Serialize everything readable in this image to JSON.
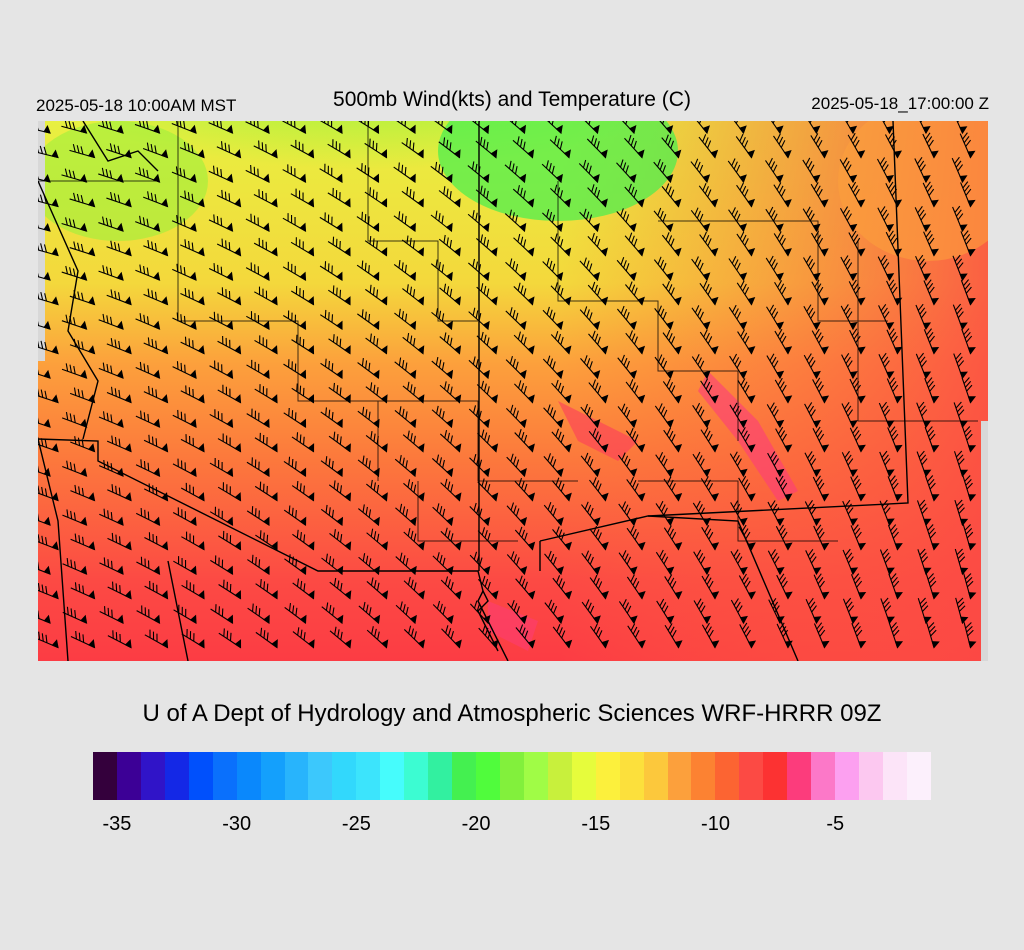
{
  "header": {
    "local_time": "2025-05-18 10:00AM MST",
    "title": "500mb Wind(kts) and Temperature (C)",
    "valid_time": "2025-05-18_17:00:00 Z"
  },
  "credit": "U of A Dept of Hydrology and Atmospheric Sciences WRF-HRRR 09Z",
  "map": {
    "field": "500mb temperature (C) with wind barbs (kts)",
    "colors": {
      "coldest_region": "#44f050",
      "cool_region": "#e8f040",
      "mid_region": "#fc9a3c",
      "warm_region": "#fc4a44",
      "warmest_streaks": "#fc3c7c",
      "background": "#d8d8d8",
      "barb": "#000000"
    }
  },
  "colorbar": {
    "colors": [
      "#34003c",
      "#3c0096",
      "#3014c8",
      "#1428e6",
      "#0050fc",
      "#0a70fc",
      "#0a88fc",
      "#14a0fc",
      "#28b4fc",
      "#3cc8fc",
      "#32d8fc",
      "#3ce4fc",
      "#46fcfc",
      "#3cfcd2",
      "#32f0a0",
      "#44f050",
      "#50fc3c",
      "#82f03c",
      "#a0fc46",
      "#c8f03c",
      "#e6fc3c",
      "#fcf03c",
      "#fce03c",
      "#fcc83c",
      "#fca03c",
      "#fc8232",
      "#fc6432",
      "#fc4a44",
      "#fc3232",
      "#fc3c7c",
      "#fc78c8",
      "#fca0f0",
      "#fcc8f0",
      "#fce4f8",
      "#fcf0fc"
    ],
    "ticks": [
      "-35",
      "-30",
      "-25",
      "-20",
      "-15",
      "-10",
      "-5"
    ]
  }
}
